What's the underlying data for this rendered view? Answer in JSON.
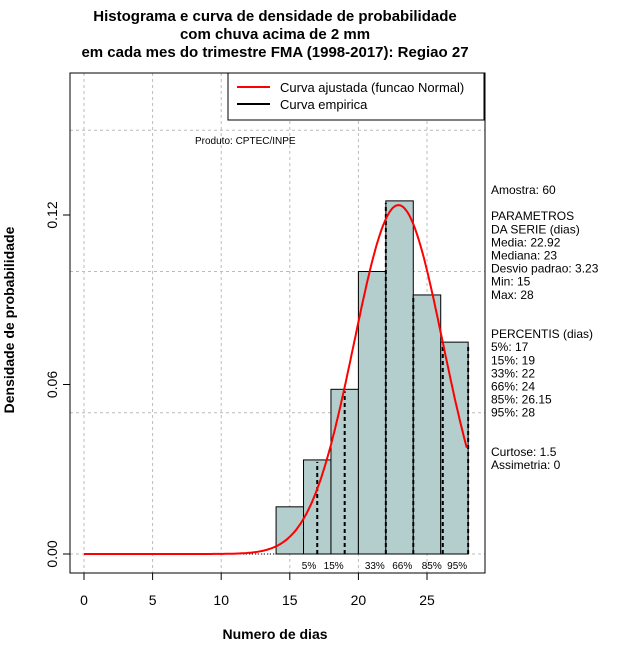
{
  "chart_data": {
    "type": "bar",
    "title": [
      "Histograma e curva de densidade de probabilidade",
      "com chuva acima de 2 mm",
      "em cada mes do trimestre FMA (1998-2017): Regiao 27"
    ],
    "xlabel": "Numero de dias",
    "ylabel": "Densidade de probabilidade",
    "xlim": [
      -1,
      29.3
    ],
    "ylim": [
      -0.0075,
      0.1695
    ],
    "xticks": [
      0,
      5,
      10,
      15,
      20,
      25
    ],
    "yticks": [
      0.0,
      0.06,
      0.12
    ],
    "ytick_labels": [
      "0.00",
      "0.06",
      "0.12"
    ],
    "grid_y": [
      0,
      0.05,
      0.1,
      0.15
    ],
    "bins": [
      [
        14,
        16
      ],
      [
        16,
        18
      ],
      [
        18,
        20
      ],
      [
        20,
        22
      ],
      [
        22,
        24
      ],
      [
        24,
        26
      ],
      [
        26,
        28
      ]
    ],
    "values": [
      0.0167,
      0.0333,
      0.0583,
      0.1,
      0.125,
      0.0917,
      0.075
    ],
    "bar_color": "#b4cece",
    "curve": {
      "name": "Curva ajustada (funcao Normal)",
      "mean": 22.92,
      "sd": 3.23,
      "x_range": [
        0,
        28
      ],
      "color": "#ff0000"
    },
    "percentiles": [
      {
        "label": "5%",
        "value": 17
      },
      {
        "label": "15%",
        "value": 19
      },
      {
        "label": "33%",
        "value": 22
      },
      {
        "label": "66%",
        "value": 24
      },
      {
        "label": "85%",
        "value": 26.15
      },
      {
        "label": "95%",
        "value": 28
      }
    ],
    "legend": {
      "position": "top-right",
      "entries": [
        {
          "label": "Curva ajustada (funcao Normal)",
          "color": "#ff0000"
        },
        {
          "label": "Curva empirica",
          "color": "#000000"
        }
      ]
    },
    "product": "Produto: CPTEC/INPE",
    "stats": [
      "Amostra: 60",
      "",
      "PARAMETROS",
      "DA SERIE (dias)",
      "  Media: 22.92",
      "  Mediana: 23",
      "  Desvio padrao: 3.23",
      "  Min: 15",
      "  Max: 28",
      "",
      "",
      "PERCENTIS (dias)",
      "  5%: 17",
      "  15%: 19",
      "  33%: 22",
      "  66%: 24",
      "  85%: 26.15",
      "  95%: 28",
      "",
      "",
      "     Curtose: 1.5",
      "     Assimetria: 0"
    ]
  }
}
